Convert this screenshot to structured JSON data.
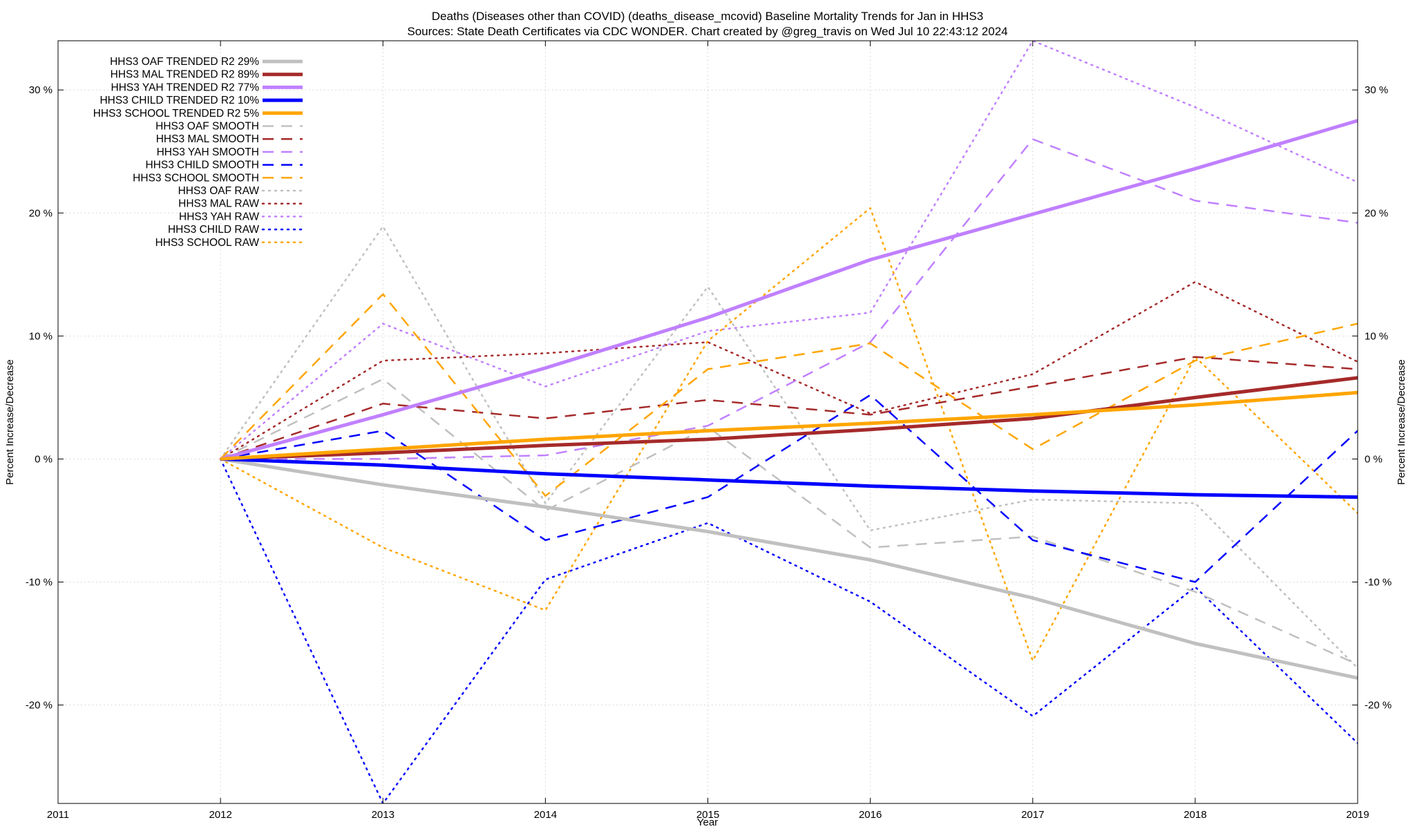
{
  "chart_data": {
    "type": "line",
    "title_line1": "Deaths (Diseases other than COVID) (deaths_disease_mcovid)  Baseline Mortality Trends for Jan in HHS3",
    "title_line2": "Sources: State Death Certificates via CDC WONDER.                Chart created by @greg_travis on Wed Jul 10 22:43:12 2024",
    "xlabel": "Year",
    "ylabel": "Percent Increase/Decrease",
    "ylabel_right": "Percent Increase/Decrease",
    "xlim": [
      2011,
      2019
    ],
    "ylim": [
      -28,
      34
    ],
    "grid": true,
    "legend_position": "top-left",
    "x_ticks": [
      {
        "value": 2011,
        "label": "2011"
      },
      {
        "value": 2012,
        "label": "2012"
      },
      {
        "value": 2013,
        "label": "2013"
      },
      {
        "value": 2014,
        "label": "2014"
      },
      {
        "value": 2015,
        "label": "2015"
      },
      {
        "value": 2016,
        "label": "2016"
      },
      {
        "value": 2017,
        "label": "2017"
      },
      {
        "value": 2018,
        "label": "2018"
      },
      {
        "value": 2019,
        "label": "2019"
      }
    ],
    "y_ticks": [
      {
        "value": -20,
        "label": "-20 %"
      },
      {
        "value": -10,
        "label": "-10 %"
      },
      {
        "value": 0,
        "label": "0 %"
      },
      {
        "value": 10,
        "label": "10 %"
      },
      {
        "value": 20,
        "label": "20 %"
      },
      {
        "value": 30,
        "label": "30 %"
      }
    ],
    "x": [
      2012,
      2013,
      2014,
      2015,
      2016,
      2017,
      2018,
      2019
    ],
    "series": [
      {
        "name": "HHS3 OAF TRENDED R2  29%",
        "color": "#c0c0c0",
        "style": "solid",
        "values": [
          0,
          -2.1,
          -3.9,
          -5.9,
          -8.2,
          -11.3,
          -15.0,
          -17.8
        ]
      },
      {
        "name": "HHS3 MAL TRENDED R2  89%",
        "color": "#a52a2a",
        "style": "solid",
        "values": [
          0,
          0.5,
          1.1,
          1.6,
          2.4,
          3.3,
          5.0,
          6.6
        ]
      },
      {
        "name": "HHS3 YAH TRENDED R2  77%",
        "color": "#c080ff",
        "style": "solid",
        "values": [
          0,
          3.6,
          7.4,
          11.5,
          16.2,
          19.9,
          23.6,
          27.5
        ]
      },
      {
        "name": "HHS3 CHILD TRENDED R2  10%",
        "color": "#0000ff",
        "style": "solid",
        "values": [
          0,
          -0.5,
          -1.2,
          -1.7,
          -2.2,
          -2.6,
          -2.9,
          -3.1
        ]
      },
      {
        "name": "HHS3 SCHOOL TRENDED R2   5%",
        "color": "#ffa500",
        "style": "solid",
        "values": [
          0,
          0.8,
          1.6,
          2.3,
          2.9,
          3.6,
          4.4,
          5.4
        ]
      },
      {
        "name": "HHS3 OAF SMOOTH",
        "color": "#c0c0c0",
        "style": "dash",
        "values": [
          0,
          6.5,
          -4.2,
          2.6,
          -7.2,
          -6.3,
          -10.8,
          -16.7
        ]
      },
      {
        "name": "HHS3 MAL SMOOTH",
        "color": "#a52a2a",
        "style": "dash",
        "values": [
          0,
          4.5,
          3.3,
          4.8,
          3.6,
          5.9,
          8.3,
          7.3
        ]
      },
      {
        "name": "HHS3 YAH SMOOTH",
        "color": "#c080ff",
        "style": "dash",
        "values": [
          0,
          0,
          0.3,
          2.7,
          9.5,
          26.0,
          21.0,
          19.2
        ]
      },
      {
        "name": "HHS3 CHILD SMOOTH",
        "color": "#0000ff",
        "style": "dash",
        "values": [
          0,
          2.3,
          -6.6,
          -3.1,
          5.2,
          -6.6,
          -10.0,
          2.3
        ]
      },
      {
        "name": "HHS3 SCHOOL SMOOTH",
        "color": "#ffa500",
        "style": "dash",
        "values": [
          0,
          13.4,
          -3.0,
          7.3,
          9.4,
          0.8,
          8.0,
          11.0
        ]
      },
      {
        "name": "HHS3 OAF RAW",
        "color": "#c0c0c0",
        "style": "dot",
        "values": [
          0,
          18.9,
          -3.6,
          14.0,
          -5.8,
          -3.3,
          -3.6,
          -17.0
        ]
      },
      {
        "name": "HHS3 MAL RAW",
        "color": "#a52a2a",
        "style": "dot",
        "values": [
          0,
          8.0,
          8.6,
          9.5,
          3.7,
          6.9,
          14.4,
          7.9
        ]
      },
      {
        "name": "HHS3 YAH RAW",
        "color": "#c080ff",
        "style": "dot",
        "values": [
          0,
          11.0,
          5.9,
          10.4,
          11.9,
          34.0,
          28.6,
          22.5
        ]
      },
      {
        "name": "HHS3 CHILD RAW",
        "color": "#0000ff",
        "style": "dot",
        "values": [
          0,
          -28.0,
          -9.8,
          -5.2,
          -11.6,
          -20.9,
          -10.4,
          -23.1
        ]
      },
      {
        "name": "HHS3 SCHOOL RAW",
        "color": "#ffa500",
        "style": "dot",
        "values": [
          0,
          -7.2,
          -12.3,
          9.6,
          20.4,
          -16.4,
          8.3,
          -4.4
        ]
      }
    ]
  }
}
